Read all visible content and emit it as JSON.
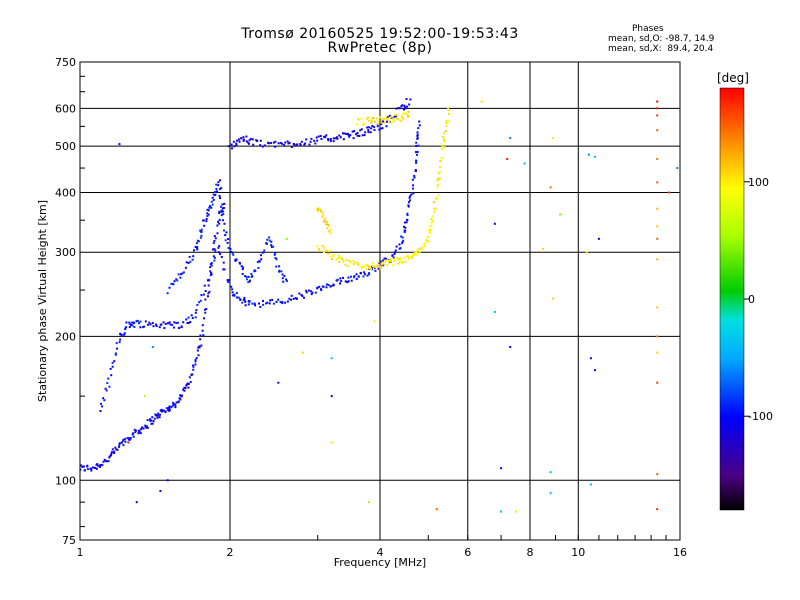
{
  "title": {
    "line1": "Tromsø 20160525 19:52:00-19:53:43",
    "line2": "RwPretec (8p)"
  },
  "stats": {
    "heading": "Phases",
    "line_o": "mean, sd,O: -98.7, 14.9",
    "line_x": "mean, sd,X:  89.4, 20.4"
  },
  "colorbar": {
    "unit_label": "[deg]",
    "ticks": [
      "100",
      "0",
      "-100"
    ],
    "tick_values": [
      100,
      0,
      -100
    ],
    "range": [
      -180,
      180
    ]
  },
  "chart_data": {
    "type": "scatter",
    "xlabel": "Frequency [MHz]",
    "ylabel": "Stationary phase Virtual Height [km]",
    "xscale": "log",
    "yscale": "log",
    "xlim": [
      1,
      16
    ],
    "ylim": [
      75,
      750
    ],
    "x_ticks": [
      1,
      2,
      4,
      6,
      8,
      10,
      16
    ],
    "x_tick_labels": [
      "1",
      "2",
      "4",
      "6",
      "8",
      "10",
      "16"
    ],
    "y_ticks": [
      75,
      100,
      200,
      300,
      400,
      500,
      600,
      750
    ],
    "y_tick_labels": [
      "75",
      "100",
      "200",
      "300",
      "400",
      "500",
      "600",
      "750"
    ],
    "grid": true,
    "traces": [
      {
        "name_hint": "O-trace low",
        "phase": -105,
        "points": [
          [
            1.0,
            106
          ],
          [
            1.05,
            106
          ],
          [
            1.1,
            108
          ],
          [
            1.15,
            112
          ],
          [
            1.2,
            118
          ],
          [
            1.25,
            123
          ],
          [
            1.3,
            126
          ],
          [
            1.35,
            130
          ],
          [
            1.4,
            134
          ],
          [
            1.45,
            138
          ],
          [
            1.5,
            141
          ],
          [
            1.55,
            144
          ],
          [
            1.6,
            150
          ],
          [
            1.65,
            160
          ],
          [
            1.7,
            175
          ],
          [
            1.75,
            195
          ],
          [
            1.8,
            240
          ],
          [
            1.85,
            300
          ],
          [
            1.9,
            355
          ],
          [
            1.95,
            380
          ]
        ]
      },
      {
        "name_hint": "O-trace upper",
        "phase": -100,
        "points": [
          [
            1.1,
            140
          ],
          [
            1.15,
            165
          ],
          [
            1.2,
            200
          ],
          [
            1.25,
            212
          ],
          [
            1.3,
            213
          ],
          [
            1.4,
            212
          ],
          [
            1.5,
            211
          ],
          [
            1.6,
            212
          ],
          [
            1.7,
            220
          ],
          [
            1.8,
            260
          ],
          [
            1.9,
            310
          ],
          [
            2.0,
            250
          ],
          [
            2.1,
            238
          ],
          [
            2.2,
            235
          ],
          [
            2.4,
            234
          ],
          [
            2.6,
            238
          ],
          [
            2.8,
            244
          ],
          [
            3.0,
            250
          ],
          [
            3.2,
            256
          ],
          [
            3.4,
            262
          ],
          [
            3.6,
            268
          ],
          [
            3.8,
            274
          ],
          [
            4.0,
            282
          ],
          [
            4.2,
            292
          ],
          [
            4.4,
            310
          ],
          [
            4.5,
            340
          ],
          [
            4.6,
            380
          ],
          [
            4.7,
            440
          ],
          [
            4.75,
            500
          ],
          [
            4.8,
            560
          ]
        ]
      },
      {
        "name_hint": "E-layer spread",
        "phase": -95,
        "points": [
          [
            1.5,
            250
          ],
          [
            1.6,
            270
          ],
          [
            1.7,
            300
          ],
          [
            1.75,
            330
          ],
          [
            1.8,
            360
          ],
          [
            1.85,
            390
          ],
          [
            1.9,
            420
          ],
          [
            1.95,
            340
          ],
          [
            2.0,
            300
          ],
          [
            2.1,
            280
          ],
          [
            2.2,
            260
          ],
          [
            2.3,
            290
          ],
          [
            2.4,
            320
          ],
          [
            2.5,
            280
          ],
          [
            2.6,
            255
          ]
        ]
      },
      {
        "name_hint": "F-layer echo",
        "phase": -110,
        "points": [
          [
            2.0,
            500
          ],
          [
            2.1,
            520
          ],
          [
            2.2,
            510
          ],
          [
            2.4,
            505
          ],
          [
            2.6,
            505
          ],
          [
            2.8,
            510
          ],
          [
            3.0,
            515
          ],
          [
            3.2,
            520
          ],
          [
            3.4,
            525
          ],
          [
            3.6,
            530
          ],
          [
            3.8,
            540
          ],
          [
            4.0,
            550
          ],
          [
            4.2,
            570
          ],
          [
            4.4,
            600
          ],
          [
            4.6,
            625
          ]
        ]
      },
      {
        "name_hint": "X-trace",
        "phase": 95,
        "points": [
          [
            3.0,
            310
          ],
          [
            3.2,
            295
          ],
          [
            3.4,
            285
          ],
          [
            3.6,
            282
          ],
          [
            3.8,
            280
          ],
          [
            4.0,
            282
          ],
          [
            4.2,
            285
          ],
          [
            4.4,
            288
          ],
          [
            4.6,
            292
          ],
          [
            4.8,
            300
          ],
          [
            5.0,
            320
          ],
          [
            5.1,
            350
          ],
          [
            5.2,
            400
          ],
          [
            5.3,
            460
          ],
          [
            5.4,
            530
          ],
          [
            5.5,
            600
          ]
        ]
      },
      {
        "name_hint": "X-trace upper",
        "phase": 100,
        "points": [
          [
            3.6,
            560
          ],
          [
            3.8,
            565
          ],
          [
            4.0,
            565
          ],
          [
            4.2,
            570
          ],
          [
            4.4,
            575
          ],
          [
            4.6,
            590
          ]
        ]
      },
      {
        "name_hint": "X spread",
        "phase": 105,
        "points": [
          [
            3.0,
            370
          ],
          [
            3.1,
            350
          ],
          [
            3.2,
            330
          ]
        ]
      }
    ],
    "scattered_points": [
      [
        1.2,
        505,
        -100
      ],
      [
        1.45,
        95,
        -100
      ],
      [
        1.3,
        90,
        -100
      ],
      [
        1.5,
        100,
        -100
      ],
      [
        1.25,
        120,
        180
      ],
      [
        1.35,
        150,
        60
      ],
      [
        1.4,
        190,
        -60
      ],
      [
        2.5,
        160,
        -100
      ],
      [
        2.6,
        320,
        40
      ],
      [
        2.8,
        185,
        110
      ],
      [
        3.2,
        180,
        -40
      ],
      [
        3.2,
        150,
        -100
      ],
      [
        3.2,
        120,
        100
      ],
      [
        3.8,
        90,
        110
      ],
      [
        3.9,
        215,
        100
      ],
      [
        4.5,
        600,
        -100
      ],
      [
        5.2,
        87,
        150
      ],
      [
        6.4,
        620,
        100
      ],
      [
        6.8,
        344,
        -100
      ],
      [
        6.8,
        225,
        -40
      ],
      [
        7.0,
        106,
        -100
      ],
      [
        7.0,
        86,
        -40
      ],
      [
        7.3,
        520,
        -60
      ],
      [
        7.2,
        470,
        170
      ],
      [
        7.3,
        190,
        -100
      ],
      [
        7.5,
        86,
        100
      ],
      [
        7.8,
        460,
        -40
      ],
      [
        8.5,
        305,
        110
      ],
      [
        8.8,
        410,
        140
      ],
      [
        8.9,
        520,
        100
      ],
      [
        8.9,
        240,
        110
      ],
      [
        8.8,
        104,
        -40
      ],
      [
        8.8,
        94,
        -40
      ],
      [
        9.2,
        360,
        40
      ],
      [
        10.5,
        480,
        -60
      ],
      [
        10.6,
        180,
        -100
      ],
      [
        10.6,
        98,
        -40
      ],
      [
        10.4,
        300,
        100
      ],
      [
        10.8,
        475,
        -40
      ],
      [
        11.0,
        320,
        -100
      ],
      [
        10.8,
        170,
        -100
      ],
      [
        14.4,
        620,
        180
      ],
      [
        14.4,
        600,
        175
      ],
      [
        14.4,
        580,
        165
      ],
      [
        14.4,
        540,
        150
      ],
      [
        14.4,
        470,
        140
      ],
      [
        14.4,
        420,
        150
      ],
      [
        14.4,
        370,
        120
      ],
      [
        14.4,
        340,
        110
      ],
      [
        14.4,
        320,
        150
      ],
      [
        14.4,
        290,
        120
      ],
      [
        14.4,
        230,
        110
      ],
      [
        14.4,
        200,
        140
      ],
      [
        14.4,
        185,
        110
      ],
      [
        14.4,
        160,
        160
      ],
      [
        14.4,
        103,
        150
      ],
      [
        14.4,
        87,
        170
      ],
      [
        15.2,
        400,
        160
      ],
      [
        15.8,
        450,
        -60
      ]
    ]
  }
}
